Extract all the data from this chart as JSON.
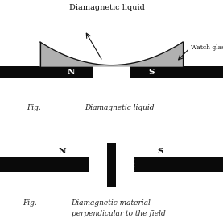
{
  "bg_color": "#ffffff",
  "magnet_color": "#0a0a0a",
  "liquid_fill_color": "#b0b0b0",
  "liquid_edge_color": "#111111",
  "fig1_caption": "Fig.",
  "fig1_label": "Diamagnetic liquid",
  "fig1_title": "Diamagnetic liquid",
  "fig1_watchglas": "Watch glas",
  "fig2_caption": "Fig.",
  "fig2_label1": "Diamagnetic material",
  "fig2_label2": "perpendicular to the field",
  "N_label": "N",
  "S_label": "S"
}
